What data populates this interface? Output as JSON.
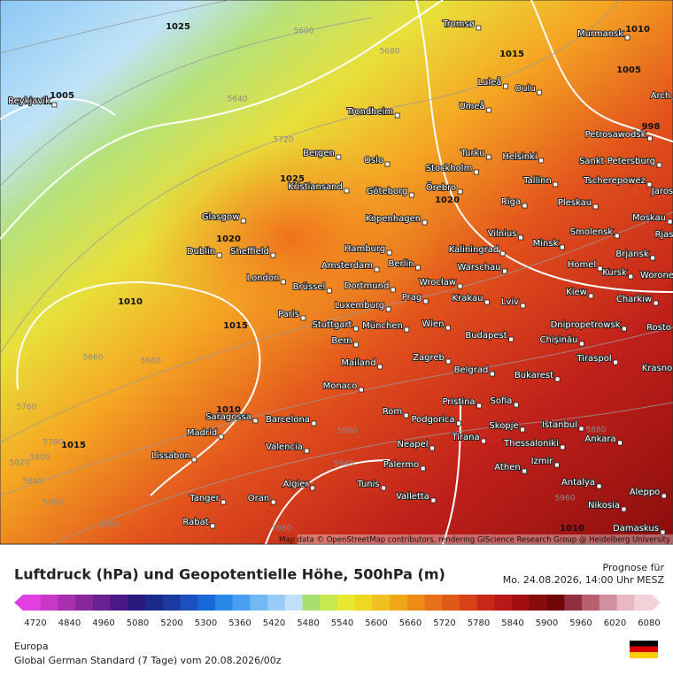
{
  "map": {
    "attribution": "Map data © OpenStreetMap contributors, rendering GIScience Research Group @ Heidelberg University",
    "cities": [
      "Tromsø",
      "Murmansk",
      "Reykjavík",
      "Luleå",
      "Oulu",
      "Umeå",
      "Trondheim",
      "Petrosawodsk",
      "Bergen",
      "Oslo",
      "Turku",
      "Helsinki",
      "Sankt Petersburg",
      "Stockholm",
      "Kristiansand",
      "Tallinn",
      "Tscherepowez",
      "Göteborg",
      "Örebro",
      "Jaros",
      "Glasgow",
      "Riga",
      "Pleskau",
      "Kopenhagen",
      "Moskau",
      "Dublin",
      "Sheffield",
      "Vilnius",
      "Smolensk",
      "Hamburg",
      "Minsk",
      "Kaliningrad",
      "Brjansk",
      "Rjas",
      "Berlin",
      "Amsterdam",
      "Warschau",
      "Homel",
      "Kursk",
      "Worone",
      "London",
      "Wrocław",
      "Brüssel",
      "Dortmund",
      "Kiew",
      "Charkiw",
      "Prag",
      "Krakau",
      "Paris",
      "Luxemburg",
      "Lviv",
      "Stuttgart",
      "München",
      "Wien",
      "Dnipropetrowsk",
      "Rosto",
      "Chișinău",
      "Bern",
      "Budapest",
      "Tiraspol",
      "Krasno",
      "Mailand",
      "Zagreb",
      "Monaco",
      "Belgrad",
      "Bukarest",
      "Saragossa",
      "Barcelona",
      "Pristina",
      "Sofia",
      "Madrid",
      "Rom",
      "Podgorica",
      "Istanbul",
      "Tirana",
      "Skopje",
      "Ankara",
      "Lissabon",
      "Valencia",
      "Neapel",
      "Thessaloniki",
      "Izmir",
      "Palermo",
      "Athen",
      "Algier",
      "Tunis",
      "Antalya",
      "Tanger",
      "Oran",
      "Valletta",
      "Aleppo",
      "Nikosia",
      "Rabat",
      "Damaskus",
      "Arch"
    ],
    "pressure_labels": [
      "1025",
      "1005",
      "1025",
      "1020",
      "1010",
      "1015",
      "1020",
      "1015",
      "1005",
      "1010",
      "998",
      "1010",
      "1015",
      "1010"
    ],
    "height_labels": [
      "5600",
      "5640",
      "5680",
      "5720",
      "5660",
      "5680",
      "5760",
      "5780",
      "5800",
      "5820",
      "5840",
      "5860",
      "5880",
      "5900",
      "5940",
      "5960",
      "5980",
      "5880"
    ]
  },
  "legend": {
    "title": "Luftdruck (hPa) und Geopotentielle Höhe, 500hPa (m)",
    "forecast_label": "Prognose für",
    "forecast_time": "Mo. 24.08.2026, 14:00 Uhr MESZ",
    "ticks": [
      "4720",
      "4840",
      "4960",
      "5080",
      "5200",
      "5300",
      "5360",
      "5420",
      "5480",
      "5540",
      "5600",
      "5660",
      "5720",
      "5780",
      "5840",
      "5900",
      "5960",
      "6020",
      "6080"
    ],
    "region": "Europa",
    "model": "Global German Standard (7 Tage) vom 20.08.2026/00z"
  }
}
